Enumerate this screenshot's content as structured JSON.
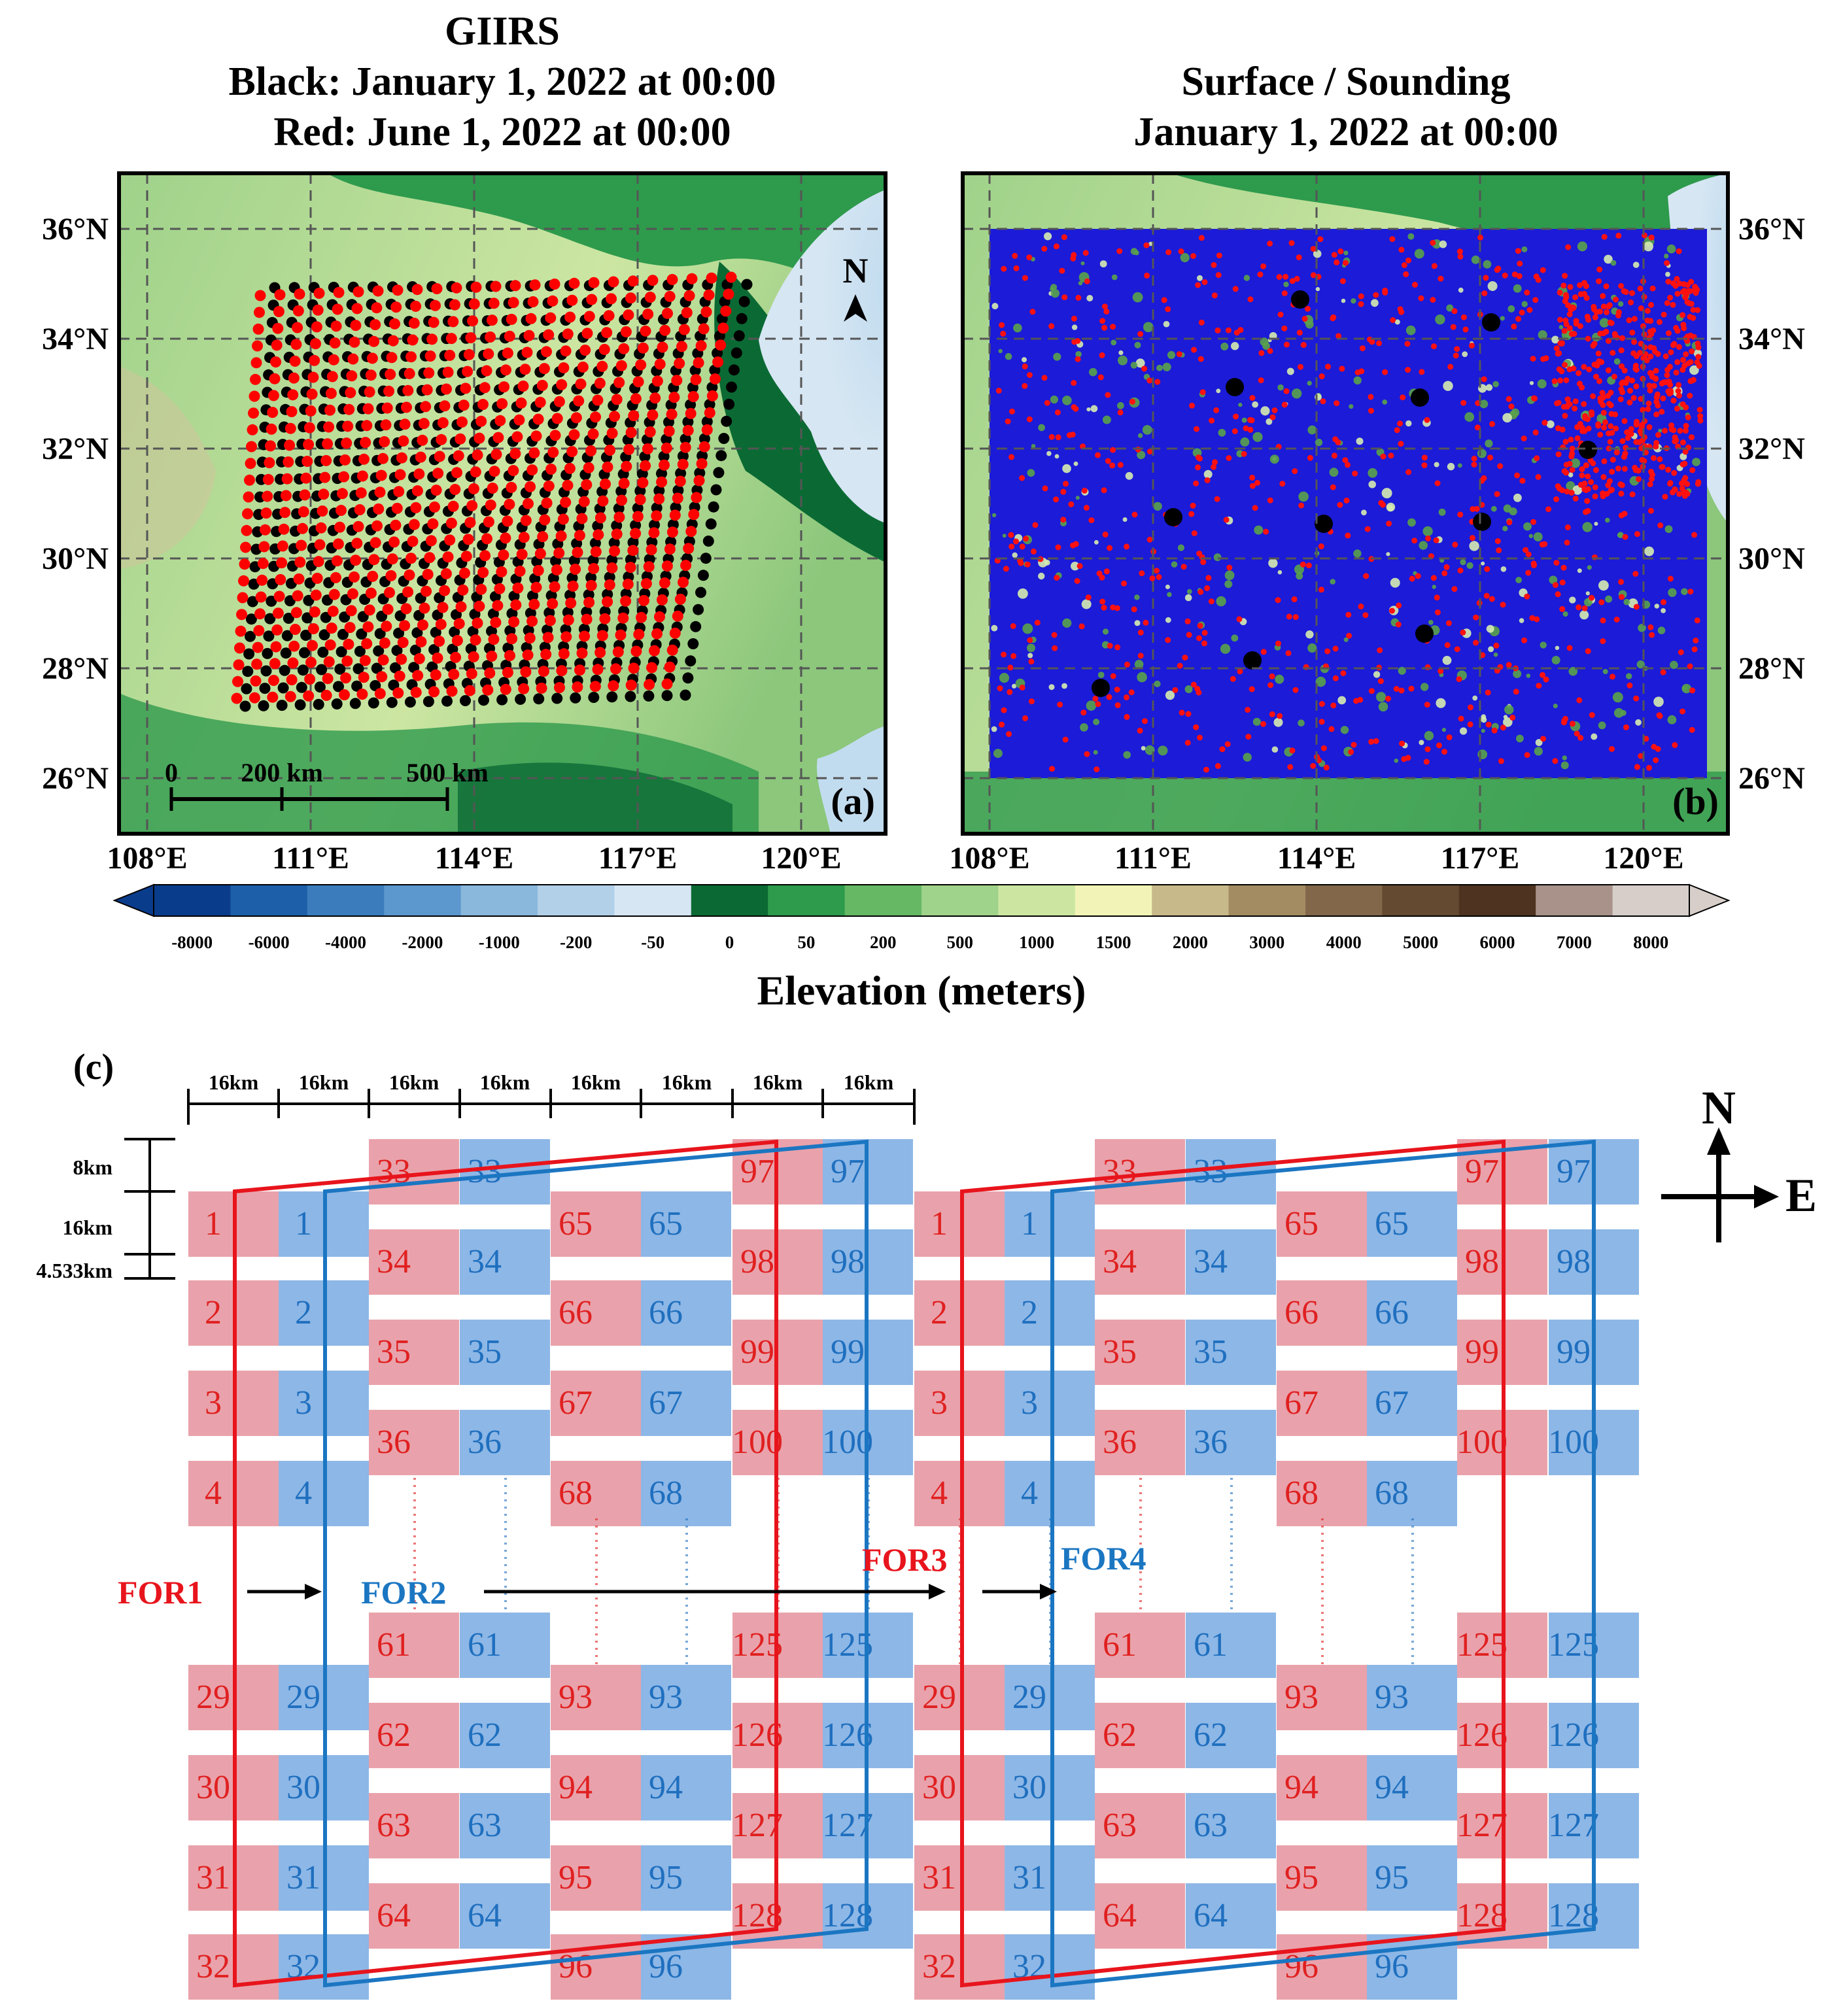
{
  "panel_a": {
    "title_lines": [
      "GIIRS",
      "Black: January 1, 2022 at 00:00",
      "Red: June 1, 2022 at 00:00"
    ],
    "label": "(a)",
    "north": "N",
    "scale_labels": [
      "0",
      "200 km",
      "500 km"
    ]
  },
  "panel_b": {
    "title_lines": [
      "Surface / Sounding",
      "January 1, 2022 at 00:00"
    ],
    "label": "(b)"
  },
  "lat_ticks": [
    "36°N",
    "34°N",
    "32°N",
    "30°N",
    "28°N",
    "26°N"
  ],
  "lon_ticks": [
    "108°E",
    "111°E",
    "114°E",
    "117°E",
    "120°E"
  ],
  "colorbar": {
    "ticks": [
      "-8000",
      "-6000",
      "-4000",
      "-2000",
      "-1000",
      "-200",
      "-50",
      "0",
      "50",
      "200",
      "500",
      "1000",
      "1500",
      "2000",
      "3000",
      "4000",
      "5000",
      "6000",
      "7000",
      "8000"
    ],
    "colors": [
      "#0a3c8c",
      "#1d5fa8",
      "#3b7dbc",
      "#5c97cd",
      "#8ab7dc",
      "#b2d0e8",
      "#d6e6f3",
      "#0b6a34",
      "#2e9a4c",
      "#66b865",
      "#9fd28a",
      "#cce6a2",
      "#f1f4b6",
      "#c7b98a",
      "#a48c62",
      "#83674a",
      "#644a31",
      "#4e3420",
      "#a8928a",
      "#d7cec9"
    ],
    "label": "Elevation (meters)"
  },
  "panel_c": {
    "label": "(c)",
    "widths": [
      "16km",
      "16km",
      "16km",
      "16km",
      "16km",
      "16km",
      "16km",
      "16km"
    ],
    "heights": [
      "8km",
      "16km",
      "4.533km"
    ],
    "for_labels": [
      "FOR1",
      "FOR2",
      "FOR3",
      "FOR4"
    ],
    "compass": [
      "N",
      "E"
    ],
    "columns": [
      {
        "top": [
          "1",
          "2",
          "3",
          "4"
        ],
        "bottom": [
          "29",
          "30",
          "31",
          "32"
        ]
      },
      {
        "top": [
          "33",
          "34",
          "35",
          "36"
        ],
        "bottom": [
          "61",
          "62",
          "63",
          "64"
        ]
      },
      {
        "top": [
          "65",
          "66",
          "67",
          "68"
        ],
        "bottom": [
          "93",
          "94",
          "95",
          "96"
        ]
      },
      {
        "top": [
          "97",
          "98",
          "99",
          "100"
        ],
        "bottom": [
          "125",
          "126",
          "127",
          "128"
        ]
      }
    ],
    "colors": {
      "red_cell": "#e9a2ab",
      "blue_cell": "#8db7e6",
      "red_text": "#e02020",
      "blue_text": "#1f6fbf",
      "red_line": "#e8141c",
      "blue_line": "#1b76c2"
    }
  }
}
